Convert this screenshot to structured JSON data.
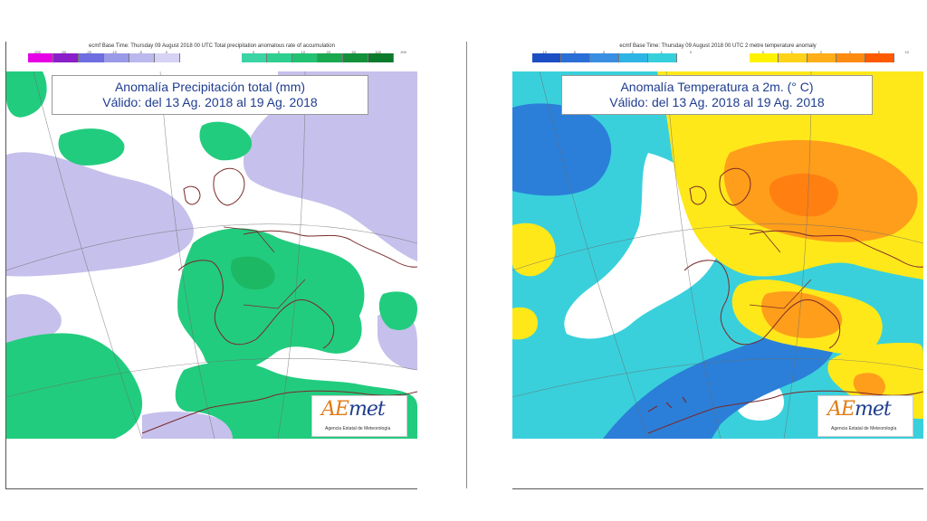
{
  "left_map": {
    "base_time": "ecmf Base Time: Thursday 09 August 2018 00 UTC Total precipitation anomalous rate of accumulation",
    "title_line1": "Anomalía Precipitación total (mm)",
    "title_line2": "Válido: del 13 Ag. 2018 al 19 Ag. 2018",
    "legend_dry_colors": [
      "#e500e5",
      "#8a1ec8",
      "#6e6ee0",
      "#9a9ae8",
      "#bbb8ee",
      "#d6d3f5"
    ],
    "legend_wet_colors": [
      "#3ad4a5",
      "#2ecf90",
      "#22c272",
      "#1aa84e",
      "#13913a",
      "#0b7a2a"
    ],
    "legend_dry_ticks": [
      "-200",
      "-50",
      "-20",
      "-10",
      "-5",
      "0"
    ],
    "legend_wet_ticks": [
      "0",
      "5",
      "10",
      "20",
      "50",
      "100",
      "200"
    ]
  },
  "right_map": {
    "base_time": "ecmf Base Time: Thursday 09 August 2018 00 UTC 2 metre temperature anomaly",
    "title_line1": "Anomalía Temperatura a 2m. (° C)",
    "title_line2": "Válido: del 13 Ag. 2018 al 19 Ag. 2018",
    "legend_cold_colors": [
      "#1c4fc4",
      "#2a6fd6",
      "#3a8ee2",
      "#2fb4e6",
      "#36d0dc"
    ],
    "legend_warm_colors": [
      "#fff200",
      "#ffd21a",
      "#ffae1a",
      "#ff8a10",
      "#ff5a00"
    ],
    "legend_cold_ticks": [
      "-10",
      "-5",
      "-3",
      "-2",
      "-1",
      "0"
    ],
    "legend_warm_ticks": [
      "0",
      "1",
      "2",
      "3",
      "5",
      "10"
    ]
  },
  "logo": {
    "wordmark_a": "AE",
    "wordmark_b": "met",
    "subtitle": "Agencia Estatal de Meteorología"
  },
  "colors": {
    "wet_green": "#22cc7e",
    "dry_lavender": "#c6c0ec",
    "cold_cyan": "#39d0dc",
    "cold_blue": "#2b7fd8",
    "warm_yellow": "#ffe81a",
    "warm_orange": "#ff9e1a",
    "border_brown": "#7a2a2a",
    "title_blue": "#1f3d8f"
  }
}
